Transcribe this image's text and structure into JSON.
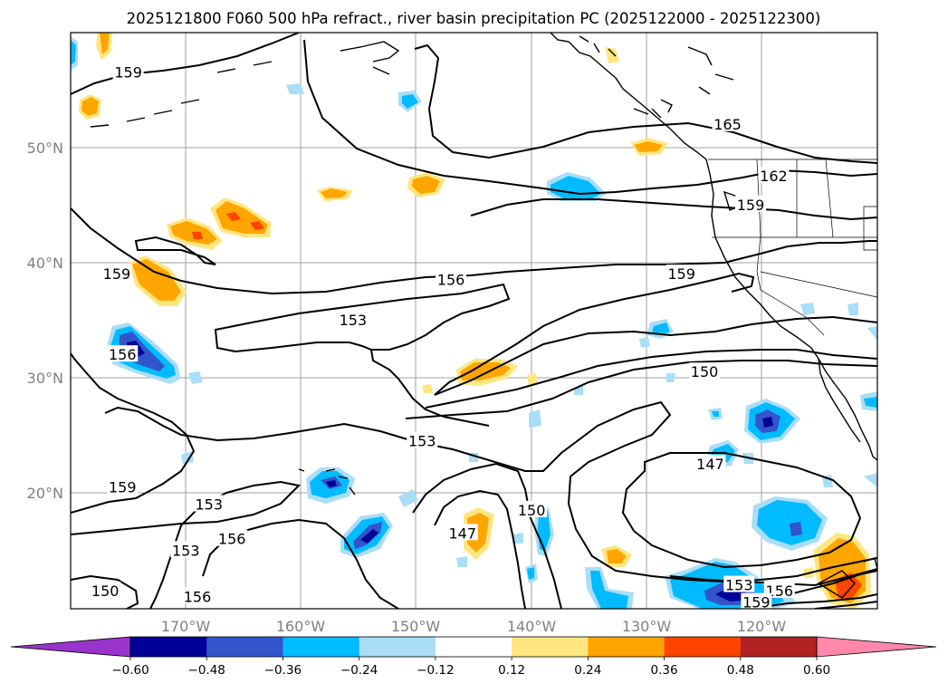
{
  "title": "2025121800 F060 500 hPa refract., river basin precipitation PC (2025122000 - 2025122300)",
  "chart_data": {
    "type": "contour-map",
    "title": "2025121800 F060 500 hPa refract., river basin precipitation PC (2025122000 - 2025122300)",
    "lon_range": [
      -180,
      -110
    ],
    "lat_range": [
      10,
      60
    ],
    "x_ticks": [
      "170°W",
      "160°W",
      "150°W",
      "140°W",
      "130°W",
      "120°W"
    ],
    "y_ticks": [
      "20°N",
      "30°N",
      "40°N",
      "50°N"
    ],
    "contour_labels": [
      {
        "text": "159",
        "lon": -175,
        "lat": 56.5
      },
      {
        "text": "165",
        "lon": -123,
        "lat": 52
      },
      {
        "text": "162",
        "lon": -119,
        "lat": 47.5
      },
      {
        "text": "159",
        "lon": -121,
        "lat": 45
      },
      {
        "text": "159",
        "lon": -176,
        "lat": 39
      },
      {
        "text": "156",
        "lon": -147,
        "lat": 38.5
      },
      {
        "text": "159",
        "lon": -127,
        "lat": 39
      },
      {
        "text": "153",
        "lon": -155.5,
        "lat": 35
      },
      {
        "text": "156",
        "lon": -175.5,
        "lat": 32
      },
      {
        "text": "150",
        "lon": -125,
        "lat": 30.5
      },
      {
        "text": "153",
        "lon": -149.5,
        "lat": 24.5
      },
      {
        "text": "147",
        "lon": -124.5,
        "lat": 22.5
      },
      {
        "text": "159",
        "lon": -175.5,
        "lat": 20.5
      },
      {
        "text": "153",
        "lon": -168,
        "lat": 19
      },
      {
        "text": "150",
        "lon": -140,
        "lat": 18.5
      },
      {
        "text": "156",
        "lon": -166,
        "lat": 16
      },
      {
        "text": "147",
        "lon": -146,
        "lat": 16.5
      },
      {
        "text": "153",
        "lon": -170,
        "lat": 15
      },
      {
        "text": "150",
        "lon": -177,
        "lat": 11.5
      },
      {
        "text": "156",
        "lon": -169,
        "lat": 11
      },
      {
        "text": "153",
        "lon": -122,
        "lat": 12
      },
      {
        "text": "156",
        "lon": -118.5,
        "lat": 11.5
      },
      {
        "text": "159",
        "lon": -120.5,
        "lat": 10.5
      }
    ],
    "colorbar": {
      "levels": [
        "−0.60",
        "−0.48",
        "−0.36",
        "−0.24",
        "−0.12",
        "0.12",
        "0.24",
        "0.36",
        "0.48",
        "0.60"
      ],
      "colors": [
        "#9933cc",
        "#000099",
        "#3355cc",
        "#00bbff",
        "#aaddf8",
        "#ffffff",
        "#ffe680",
        "#ffa500",
        "#ff4400",
        "#b22222",
        "#ff88aa"
      ],
      "extend": "both"
    }
  }
}
